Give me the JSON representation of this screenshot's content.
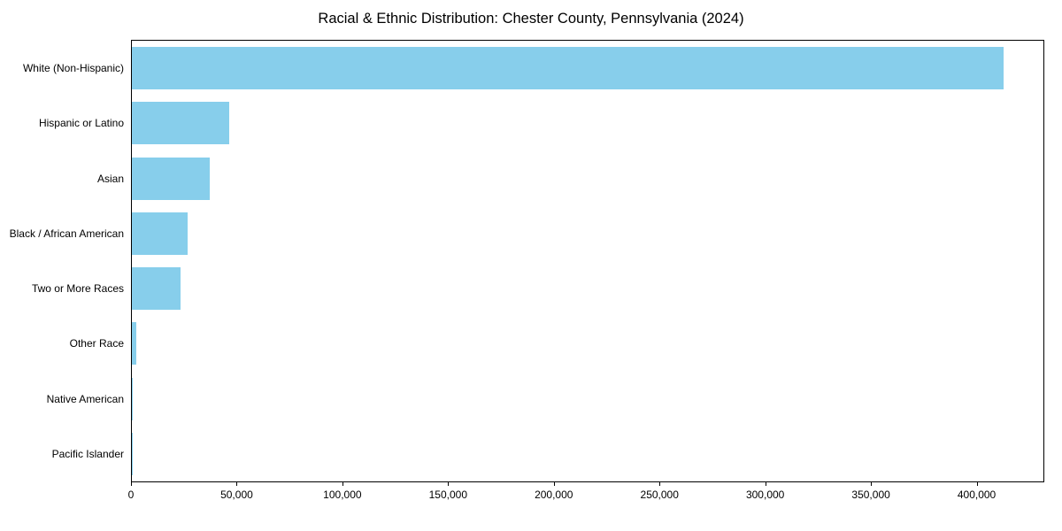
{
  "chart_data": {
    "type": "bar",
    "orientation": "horizontal",
    "title": "Racial & Ethnic Distribution: Chester County, Pennsylvania (2024)",
    "categories": [
      "White (Non-Hispanic)",
      "Hispanic or Latino",
      "Asian",
      "Black / African American",
      "Two or More Races",
      "Other Race",
      "Native American",
      "Pacific Islander"
    ],
    "values": [
      413000,
      46000,
      37000,
      26500,
      23000,
      2200,
      600,
      150
    ],
    "bar_color": "#87CEEB",
    "xlabel": "",
    "ylabel": "",
    "xlim": [
      0,
      432000
    ],
    "x_ticks": [
      0,
      50000,
      100000,
      150000,
      200000,
      250000,
      300000,
      350000,
      400000
    ],
    "x_tick_labels": [
      "0",
      "50,000",
      "100,000",
      "150,000",
      "200,000",
      "250,000",
      "300,000",
      "350,000",
      "400,000"
    ],
    "grid": false,
    "legend": false
  }
}
